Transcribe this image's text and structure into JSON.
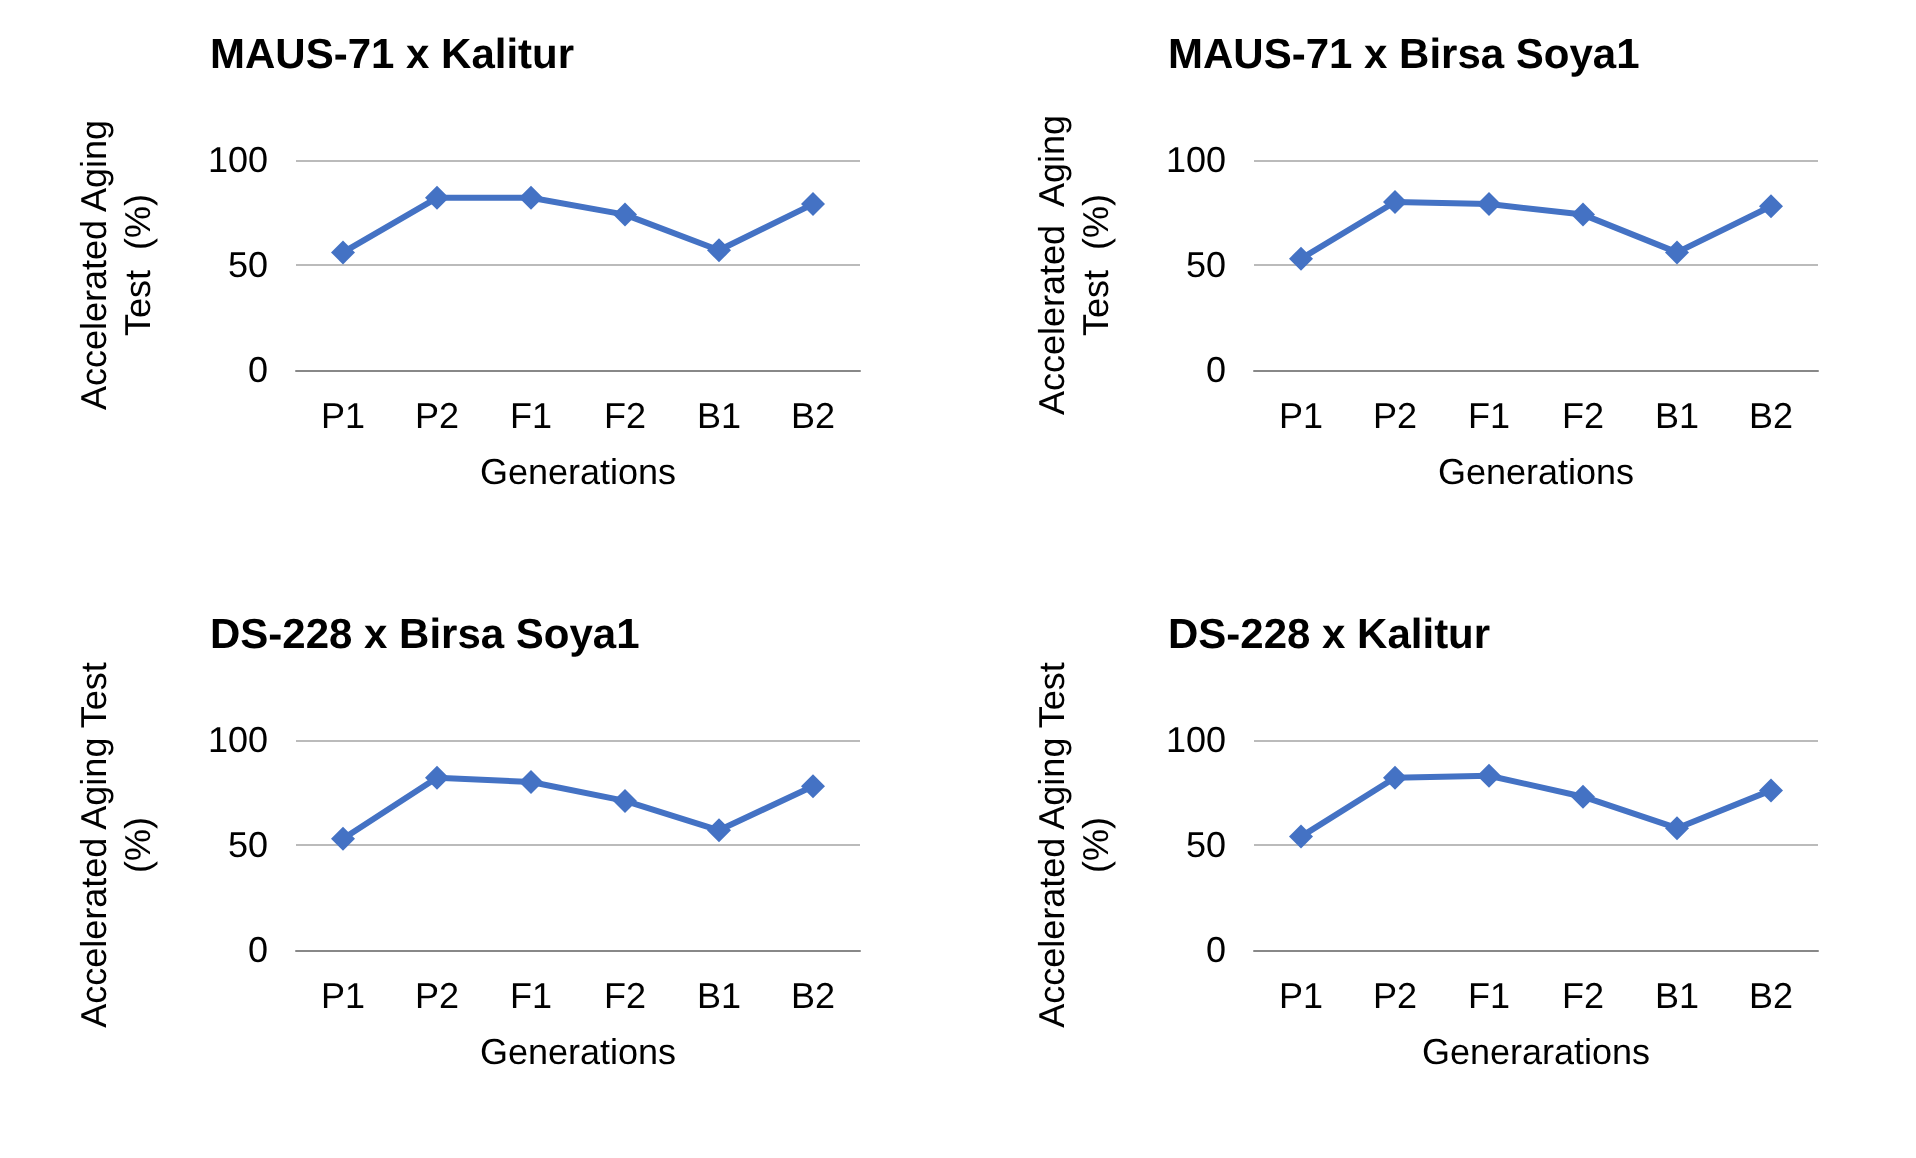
{
  "chart_data": [
    {
      "type": "line",
      "title": "MAUS-71 x Kalitur",
      "xlabel": "Generations",
      "ylabel": "Accelerated Aging\nTest  (%)",
      "categories": [
        "P1",
        "P2",
        "F1",
        "F2",
        "B1",
        "B2"
      ],
      "series": [
        {
          "color": "#4472c4",
          "values": [
            56,
            82,
            82,
            74,
            57,
            79
          ]
        }
      ],
      "ylim": [
        0,
        100
      ],
      "yticks": [
        0,
        50,
        100
      ],
      "grid": "y",
      "marker": "diamond"
    },
    {
      "type": "line",
      "title": "MAUS-71 x Birsa Soya1",
      "xlabel": "Generations",
      "ylabel": "Accelerated  Aging\nTest  (%)",
      "categories": [
        "P1",
        "P2",
        "F1",
        "F2",
        "B1",
        "B2"
      ],
      "series": [
        {
          "color": "#4472c4",
          "values": [
            53,
            80,
            79,
            74,
            56,
            78
          ]
        }
      ],
      "ylim": [
        0,
        100
      ],
      "yticks": [
        0,
        50,
        100
      ],
      "grid": "y",
      "marker": "diamond"
    },
    {
      "type": "line",
      "title": "DS-228 x Birsa Soya1",
      "xlabel": "Generations",
      "ylabel": "Accelerated Aging Test\n(%)",
      "categories": [
        "P1",
        "P2",
        "F1",
        "F2",
        "B1",
        "B2"
      ],
      "series": [
        {
          "color": "#4472c4",
          "values": [
            53,
            82,
            80,
            71,
            57,
            78
          ]
        }
      ],
      "ylim": [
        0,
        100
      ],
      "yticks": [
        0,
        50,
        100
      ],
      "grid": "y",
      "marker": "diamond"
    },
    {
      "type": "line",
      "title": "DS-228 x Kalitur",
      "xlabel": "Generarations",
      "ylabel": "Accelerated Aging Test\n(%)",
      "categories": [
        "P1",
        "P2",
        "F1",
        "F2",
        "B1",
        "B2"
      ],
      "series": [
        {
          "color": "#4472c4",
          "values": [
            54,
            82,
            83,
            73,
            58,
            76
          ]
        }
      ],
      "ylim": [
        0,
        100
      ],
      "yticks": [
        0,
        50,
        100
      ],
      "grid": "y",
      "marker": "diamond"
    }
  ]
}
